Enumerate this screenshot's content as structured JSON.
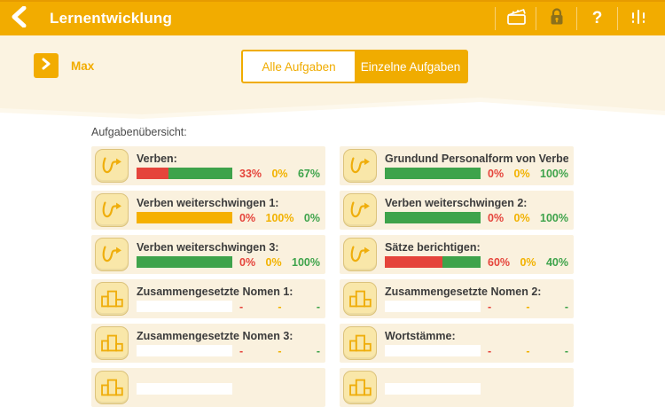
{
  "colors": {
    "header_bg": "#F2AC00",
    "cream_bg": "#FBF3E1",
    "card_bg": "#FAF1DE",
    "red": "#E5443B",
    "orange": "#F5B000",
    "green": "#3EA34B"
  },
  "header": {
    "title": "Lernentwicklung",
    "icons": [
      "back-chevron",
      "clapperboard",
      "lock",
      "help",
      "sliders"
    ],
    "help_glyph": "?"
  },
  "subheader": {
    "student": "Max",
    "tabs": [
      {
        "label": "Alle Aufgaben",
        "active": true
      },
      {
        "label": "Einzelne Aufgaben",
        "active": false
      }
    ]
  },
  "main": {
    "section_title": "Aufgabenübersicht:",
    "tasks": [
      {
        "label": "Verben:",
        "icon": "curve-arrow",
        "red": "33%",
        "yellow": "0%",
        "green": "67%",
        "bar": [
          [
            "red",
            33
          ],
          [
            "green",
            67
          ]
        ]
      },
      {
        "label": "Grundund  Personalform von Verben:",
        "icon": "curve-arrow",
        "red": "0%",
        "yellow": "0%",
        "green": "100%",
        "bar": [
          [
            "green",
            100
          ]
        ]
      },
      {
        "label": "Verben weiterschwingen 1:",
        "icon": "curve-arrow",
        "red": "0%",
        "yellow": "100%",
        "green": "0%",
        "bar": [
          [
            "orange",
            100
          ]
        ]
      },
      {
        "label": "Verben weiterschwingen 2:",
        "icon": "curve-arrow",
        "red": "0%",
        "yellow": "0%",
        "green": "100%",
        "bar": [
          [
            "green",
            100
          ]
        ]
      },
      {
        "label": "Verben weiterschwingen 3:",
        "icon": "curve-arrow",
        "red": "0%",
        "yellow": "0%",
        "green": "100%",
        "bar": [
          [
            "green",
            100
          ]
        ]
      },
      {
        "label": "Sätze berichtigen:",
        "icon": "curve-arrow",
        "red": "60%",
        "yellow": "0%",
        "green": "40%",
        "bar": [
          [
            "red",
            60
          ],
          [
            "green",
            40
          ]
        ]
      },
      {
        "label": "Zusammengesetzte Nomen 1:",
        "icon": "blocks",
        "red": "-",
        "yellow": "-",
        "green": "-",
        "bar": []
      },
      {
        "label": "Zusammengesetzte Nomen 2:",
        "icon": "blocks",
        "red": "-",
        "yellow": "-",
        "green": "-",
        "bar": []
      },
      {
        "label": "Zusammengesetzte Nomen 3:",
        "icon": "blocks",
        "red": "-",
        "yellow": "-",
        "green": "-",
        "bar": []
      },
      {
        "label": "Wortstämme:",
        "icon": "blocks",
        "red": "-",
        "yellow": "-",
        "green": "-",
        "bar": []
      },
      {
        "label": "",
        "icon": "blocks",
        "red": "",
        "yellow": "",
        "green": "",
        "bar": []
      },
      {
        "label": "",
        "icon": "blocks",
        "red": "",
        "yellow": "",
        "green": "",
        "bar": []
      }
    ]
  }
}
